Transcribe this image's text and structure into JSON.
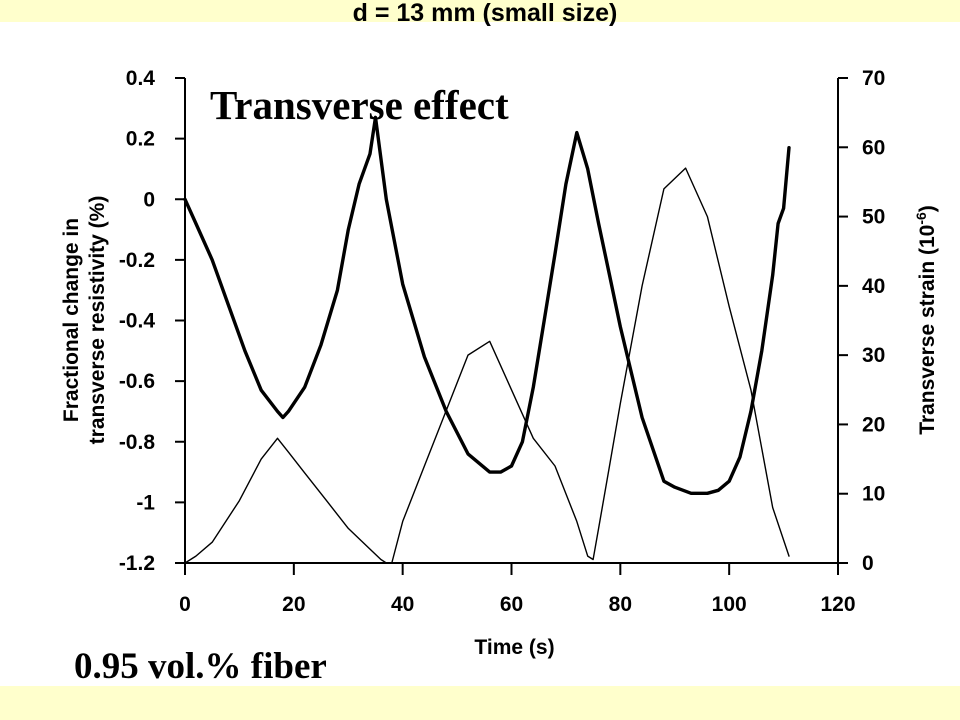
{
  "slide": {
    "heading": "d = 13 mm (small size)",
    "panel_title": "Transverse effect",
    "footnote": "0.95 vol.% fiber"
  },
  "colors": {
    "band_background": "#ffffcc",
    "panel_background": "#ffffff",
    "ink": "#000000"
  },
  "chart_data": {
    "type": "line",
    "title": "",
    "xlabel": "Time (s)",
    "ylabel_left_line1": "Fractional change in",
    "ylabel_left_line2": "transverse resistivity (%)",
    "ylabel_right": "Transverse strain (10",
    "ylabel_right_exp": "-6",
    "ylabel_right_close": ")",
    "xlim": [
      0,
      120
    ],
    "ylim_left": [
      -1.2,
      0.4
    ],
    "ylim_right": [
      0,
      70
    ],
    "x_ticks": [
      0,
      20,
      40,
      60,
      80,
      100,
      120
    ],
    "x_tick_labels": [
      "0",
      "20",
      "40",
      "60",
      "80",
      "100",
      "120"
    ],
    "y_left_ticks": [
      0.4,
      0.2,
      0,
      -0.2,
      -0.4,
      -0.6,
      -0.8,
      -1,
      -1.2
    ],
    "y_left_tick_labels": [
      "0.4",
      "0.2",
      "0",
      "-0.2",
      "-0.4",
      "-0.6",
      "-0.8",
      "-1",
      "-1.2"
    ],
    "y_right_ticks": [
      70,
      60,
      50,
      40,
      30,
      20,
      10,
      0
    ],
    "y_right_tick_labels": [
      "70",
      "60",
      "50",
      "40",
      "30",
      "20",
      "10",
      "0"
    ],
    "grid": false,
    "series": [
      {
        "axis": "left",
        "style": "thick",
        "x": [
          0,
          2,
          5,
          8,
          11,
          14,
          17,
          18,
          19,
          22,
          25,
          28,
          30,
          32,
          34,
          35,
          37,
          40,
          44,
          48,
          52,
          56,
          58,
          60,
          62,
          64,
          66,
          68,
          70,
          72,
          74,
          76,
          78,
          80,
          84,
          88,
          90,
          93,
          96,
          98,
          100,
          102,
          104,
          106,
          108,
          109,
          110,
          111
        ],
        "values": [
          0.0,
          -0.08,
          -0.2,
          -0.35,
          -0.5,
          -0.63,
          -0.7,
          -0.72,
          -0.7,
          -0.62,
          -0.48,
          -0.3,
          -0.1,
          0.05,
          0.15,
          0.27,
          0.0,
          -0.28,
          -0.52,
          -0.7,
          -0.84,
          -0.9,
          -0.9,
          -0.88,
          -0.8,
          -0.62,
          -0.4,
          -0.18,
          0.05,
          0.22,
          0.1,
          -0.08,
          -0.25,
          -0.42,
          -0.72,
          -0.93,
          -0.95,
          -0.97,
          -0.97,
          -0.96,
          -0.93,
          -0.85,
          -0.7,
          -0.5,
          -0.25,
          -0.08,
          -0.03,
          0.17
        ]
      },
      {
        "axis": "right",
        "style": "thin",
        "x": [
          0,
          2,
          5,
          10,
          14,
          17,
          19,
          22,
          26,
          30,
          34,
          36,
          37,
          38,
          40,
          44,
          48,
          52,
          56,
          60,
          64,
          68,
          72,
          74,
          75,
          76,
          78,
          80,
          84,
          88,
          92,
          96,
          100,
          104,
          108,
          111
        ],
        "values": [
          0,
          1,
          3,
          9,
          15,
          18,
          16,
          13,
          9,
          5,
          2,
          0.5,
          0,
          0,
          6,
          14,
          22,
          30,
          32,
          25,
          18,
          14,
          6,
          1,
          0.5,
          5,
          14,
          23,
          40,
          54,
          57,
          50,
          37,
          25,
          8,
          1
        ]
      }
    ]
  }
}
